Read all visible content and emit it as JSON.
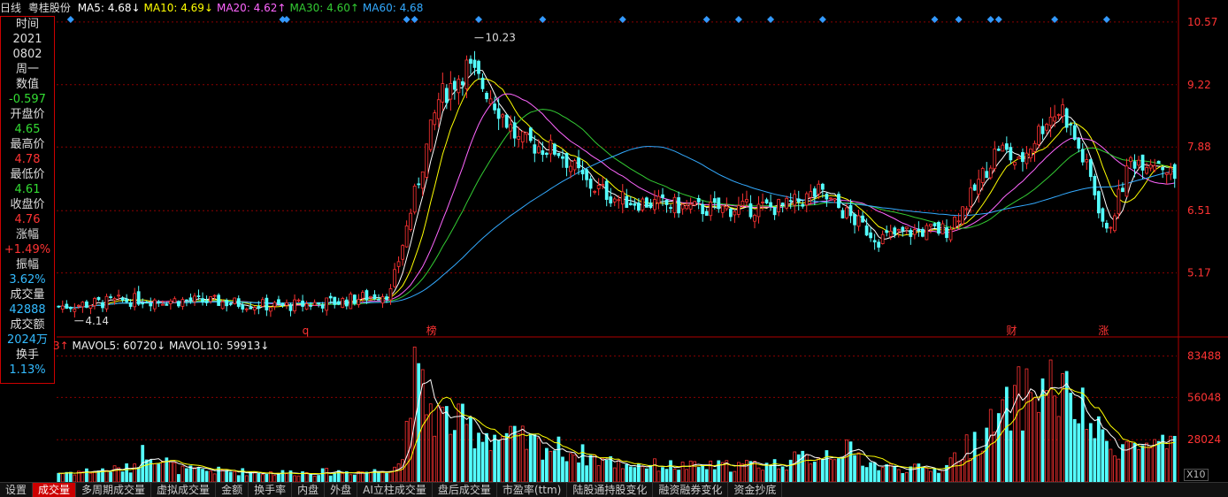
{
  "header": {
    "period": "日线",
    "stock": "粤桂股份",
    "ma": [
      {
        "label": "MA5: 4.68↓",
        "color": "#ffffff"
      },
      {
        "label": "MA10: 4.69↓",
        "color": "#ffff00"
      },
      {
        "label": "MA20: 4.62↑",
        "color": "#ff66ff"
      },
      {
        "label": "MA30: 4.60↑",
        "color": "#33cc33"
      },
      {
        "label": "MA60: 4.68",
        "color": "#33aaff"
      }
    ]
  },
  "volume_header": {
    "prefix": "3↑",
    "mavol5": "MAVOL5: 60720↓",
    "mavol10": "MAVOL10: 59913↓"
  },
  "info_panel": [
    {
      "label": "时间",
      "value": "2021",
      "value2": "0802",
      "color": "#dddddd"
    },
    {
      "label": "周一",
      "value": "",
      "color": "#dddddd"
    },
    {
      "label": "数值",
      "value": "-0.597",
      "color": "#33dd33"
    },
    {
      "label": "开盘价",
      "value": "4.65",
      "color": "#33dd33"
    },
    {
      "label": "最高价",
      "value": "4.78",
      "color": "#ff3333"
    },
    {
      "label": "最低价",
      "value": "4.61",
      "color": "#33dd33"
    },
    {
      "label": "收盘价",
      "value": "4.76",
      "color": "#ff3333"
    },
    {
      "label": "涨幅",
      "value": "+1.49%",
      "color": "#ff3333"
    },
    {
      "label": "振幅",
      "value": "3.62%",
      "color": "#33bbff"
    },
    {
      "label": "成交量",
      "value": "42888",
      "color": "#33bbff"
    },
    {
      "label": "成交额",
      "value": "2024万",
      "color": "#33bbff"
    },
    {
      "label": "换手",
      "value": "1.13%",
      "color": "#33bbff"
    }
  ],
  "tabs": [
    "设置",
    "成交量",
    "多周期成交量",
    "虚拟成交量",
    "金额",
    "换手率",
    "内盘",
    "外盘",
    "AI立柱成交量",
    "盘后成交量",
    "市盈率(ttm)",
    "陆股通持股变化",
    "融资融券变化",
    "资金抄底"
  ],
  "active_tab": 1,
  "x10_label": "X10",
  "colors": {
    "up": "#ff3333",
    "down": "#54ffff",
    "grid": "#8b0000",
    "axis_text": "#ff3333",
    "marker": "#3399ff"
  },
  "chart_data": {
    "type": "candlestick",
    "price_axis": {
      "ticks": [
        5.17,
        6.51,
        7.88,
        9.22,
        10.57
      ],
      "range": [
        3.85,
        10.7
      ]
    },
    "volume_axis": {
      "ticks": [
        28024,
        56048,
        83488
      ],
      "range": [
        0,
        85000
      ]
    },
    "annotations": [
      {
        "label": "10.23",
        "value": 10.23,
        "type": "high"
      },
      {
        "label": "4.14",
        "value": 4.14,
        "type": "low"
      }
    ],
    "event_labels": [
      {
        "label": "q",
        "index": 62
      },
      {
        "label": "榜",
        "index": 93
      },
      {
        "label": "财",
        "index": 238
      },
      {
        "label": "涨",
        "index": 261
      }
    ],
    "marker_indices": [
      3,
      56,
      57,
      87,
      89,
      105,
      121,
      141,
      162,
      170,
      178,
      191,
      225,
      249,
      262,
      219,
      233,
      235
    ],
    "key_points": [
      [
        0,
        4.45
      ],
      [
        20,
        4.6
      ],
      [
        40,
        4.55
      ],
      [
        55,
        4.45
      ],
      [
        70,
        4.55
      ],
      [
        83,
        4.75
      ],
      [
        88,
        6.5
      ],
      [
        95,
        8.9
      ],
      [
        102,
        9.6
      ],
      [
        108,
        9.0
      ],
      [
        115,
        8.0
      ],
      [
        125,
        7.8
      ],
      [
        132,
        7.1
      ],
      [
        140,
        6.75
      ],
      [
        150,
        6.65
      ],
      [
        160,
        6.55
      ],
      [
        170,
        6.55
      ],
      [
        182,
        6.6
      ],
      [
        190,
        6.9
      ],
      [
        196,
        6.5
      ],
      [
        205,
        5.9
      ],
      [
        212,
        6.05
      ],
      [
        222,
        6.1
      ],
      [
        228,
        6.8
      ],
      [
        235,
        7.9
      ],
      [
        240,
        7.5
      ],
      [
        247,
        8.5
      ],
      [
        251,
        8.7
      ],
      [
        258,
        7.2
      ],
      [
        262,
        6.0
      ],
      [
        268,
        7.6
      ],
      [
        275,
        7.6
      ],
      [
        279,
        7.2
      ]
    ],
    "volume_key_points": [
      [
        0,
        6000
      ],
      [
        18,
        9000
      ],
      [
        22,
        22000
      ],
      [
        30,
        8000
      ],
      [
        55,
        6000
      ],
      [
        80,
        7000
      ],
      [
        86,
        14000
      ],
      [
        88,
        70000
      ],
      [
        94,
        45000
      ],
      [
        100,
        38000
      ],
      [
        110,
        30000
      ],
      [
        125,
        22000
      ],
      [
        140,
        12000
      ],
      [
        160,
        10000
      ],
      [
        180,
        12000
      ],
      [
        190,
        18000
      ],
      [
        196,
        22000
      ],
      [
        205,
        10000
      ],
      [
        220,
        8000
      ],
      [
        228,
        25000
      ],
      [
        235,
        40000
      ],
      [
        240,
        55000
      ],
      [
        248,
        65000
      ],
      [
        255,
        48000
      ],
      [
        262,
        25000
      ],
      [
        279,
        22000
      ]
    ]
  }
}
